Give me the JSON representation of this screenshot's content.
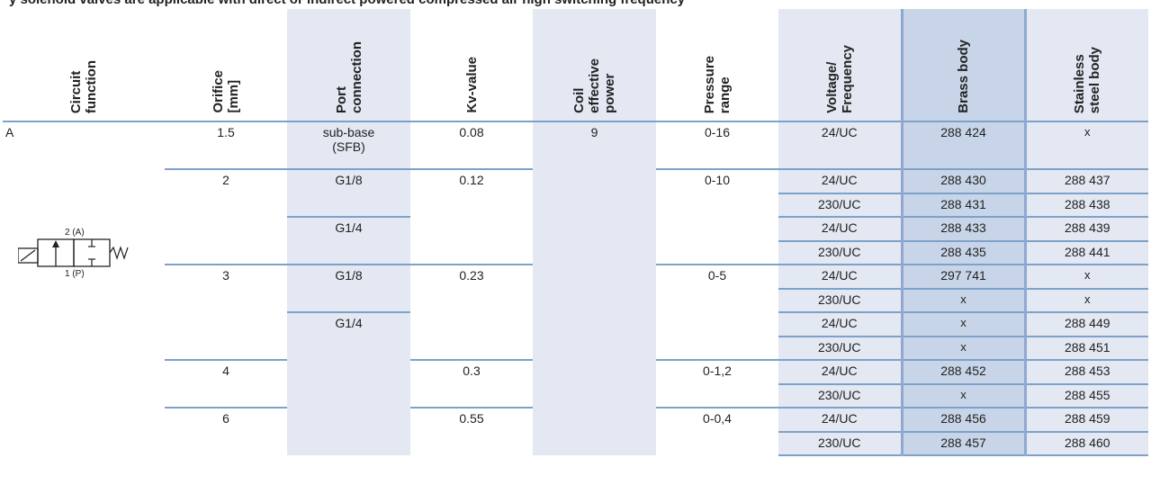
{
  "top_caption": "y solenoid valves are applicable with direct or indirect powered compressed air high switching frequency",
  "columns": [
    {
      "key": "circuit_function",
      "label": "Circuit\nfunction"
    },
    {
      "key": "orifice",
      "label": "Orifice\n[mm]"
    },
    {
      "key": "port_connection",
      "label": "Port\nconnection"
    },
    {
      "key": "kv_value",
      "label": "Kv-value"
    },
    {
      "key": "coil_power",
      "label": "Coil\neffective\npower"
    },
    {
      "key": "pressure_range",
      "label": "Pressure\nrange"
    },
    {
      "key": "voltage",
      "label": "Voltage/\nFrequency"
    },
    {
      "key": "brass",
      "label": "Brass body"
    },
    {
      "key": "stainless",
      "label": "Stainless\nsteel body"
    }
  ],
  "circuit": {
    "label": "A",
    "port2": "2 (A)",
    "port1": "1 (P)"
  },
  "rows": [
    {
      "orifice": "1.5",
      "port": "sub-base\n(SFB)",
      "kv": "0.08",
      "coil": "9",
      "pressure": "0-16",
      "voltage": "24/UC",
      "brass": "288 424",
      "stainless": "x"
    },
    {
      "orifice": "2",
      "port": "G1/8",
      "kv": "0.12",
      "pressure": "0-10",
      "voltage": "24/UC",
      "brass": "288 430",
      "stainless": "288 437"
    },
    {
      "voltage": "230/UC",
      "brass": "288 431",
      "stainless": "288 438"
    },
    {
      "port": "G1/4",
      "voltage": "24/UC",
      "brass": "288 433",
      "stainless": "288 439"
    },
    {
      "voltage": "230/UC",
      "brass": "288 435",
      "stainless": "288 441"
    },
    {
      "orifice": "3",
      "port": "G1/8",
      "kv": "0.23",
      "pressure": "0-5",
      "voltage": "24/UC",
      "brass": "297 741",
      "stainless": "x"
    },
    {
      "voltage": "230/UC",
      "brass": "x",
      "stainless": "x"
    },
    {
      "port": "G1/4",
      "voltage": "24/UC",
      "brass": "x",
      "stainless": "288 449"
    },
    {
      "voltage": "230/UC",
      "brass": "x",
      "stainless": "288 451"
    },
    {
      "orifice": "4",
      "kv": "0.3",
      "pressure": "0-1,2",
      "voltage": "24/UC",
      "brass": "288 452",
      "stainless": "288 453"
    },
    {
      "voltage": "230/UC",
      "brass": "x",
      "stainless": "288 455"
    },
    {
      "orifice": "6",
      "kv": "0.55",
      "pressure": "0-0,4",
      "voltage": "24/UC",
      "brass": "288 456",
      "stainless": "288 459"
    },
    {
      "voltage": "230/UC",
      "brass": "288 457",
      "stainless": "288 460"
    }
  ]
}
